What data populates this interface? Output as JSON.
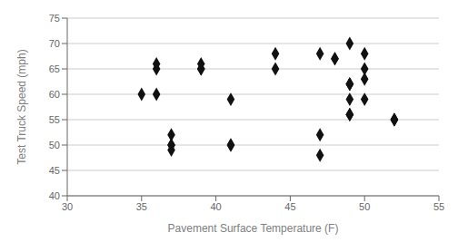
{
  "chart_data": {
    "type": "scatter",
    "x": [
      35,
      36,
      36,
      36,
      37,
      37,
      37,
      37,
      39,
      39,
      39,
      41,
      41,
      41,
      44,
      44,
      47,
      47,
      47,
      48,
      48,
      49,
      49,
      49,
      49,
      49,
      49,
      49,
      49,
      50,
      50,
      50,
      50,
      52,
      52,
      52
    ],
    "values": [
      60,
      65,
      66,
      60,
      52,
      50,
      49,
      50,
      65,
      66,
      65,
      59,
      50,
      50,
      68,
      65,
      52,
      48,
      68,
      67,
      67,
      62,
      62,
      56,
      56,
      56,
      59,
      70,
      62,
      68,
      65,
      63,
      59,
      55,
      55,
      55
    ],
    "xlabel": "Pavement Surface Temperature (F)",
    "ylabel": "Test Truck Speed (mph)",
    "xlim": [
      30,
      55
    ],
    "ylim": [
      40,
      75
    ],
    "xticks": [
      30,
      35,
      40,
      45,
      50,
      55
    ],
    "yticks": [
      40,
      45,
      50,
      55,
      60,
      65,
      70,
      75
    ],
    "marker": "diamond",
    "color": "#111111",
    "grid": "y"
  }
}
